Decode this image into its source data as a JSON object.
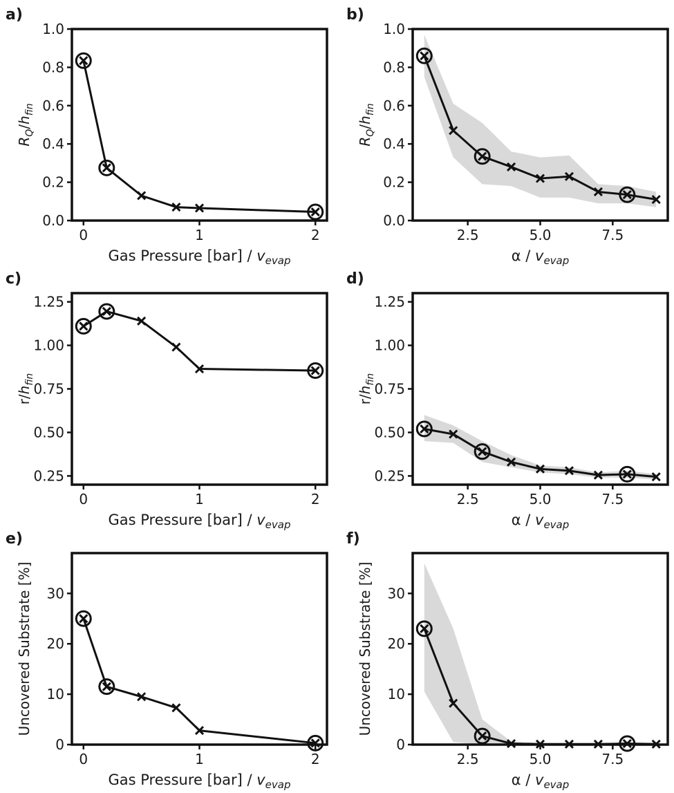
{
  "chart_data": [
    {
      "panel": "a)",
      "type": "line",
      "xlabel": "Gas Pressure [bar] / ",
      "xlabel_var": "v",
      "xlabel_sub": "evap",
      "ylabel": "R",
      "ylabel_sub1": "Q",
      "ylabel_mid": "/h",
      "ylabel_sub2": "fin",
      "xlim": [
        -0.1,
        2.1
      ],
      "ylim": [
        0,
        1.0
      ],
      "xticks": [
        0,
        1,
        2
      ],
      "xtick_labels": [
        "0",
        "1",
        "2"
      ],
      "yticks": [
        0,
        0.2,
        0.4,
        0.6,
        0.8,
        1.0
      ],
      "ytick_labels": [
        "0.0",
        "0.2",
        "0.4",
        "0.6",
        "0.8",
        "1.0"
      ],
      "x": [
        0,
        0.2,
        0.5,
        0.8,
        1.0,
        2.0
      ],
      "y": [
        0.835,
        0.275,
        0.13,
        0.07,
        0.065,
        0.045
      ],
      "circled_indices": [
        0,
        1,
        5
      ]
    },
    {
      "panel": "b)",
      "type": "line",
      "xlabel": "α / ",
      "xlabel_var": "v",
      "xlabel_sub": "evap",
      "ylabel": "R",
      "ylabel_sub1": "Q",
      "ylabel_mid": "/h",
      "ylabel_sub2": "fin",
      "xlim": [
        0.6,
        9.4
      ],
      "ylim": [
        0,
        1.0
      ],
      "xticks": [
        2.5,
        5.0,
        7.5
      ],
      "xtick_labels": [
        "2.5",
        "5.0",
        "7.5"
      ],
      "yticks": [
        0,
        0.2,
        0.4,
        0.6,
        0.8,
        1.0
      ],
      "ytick_labels": [
        "0.0",
        "0.2",
        "0.4",
        "0.6",
        "0.8",
        "1.0"
      ],
      "x": [
        1,
        2,
        3,
        4,
        5,
        6,
        7,
        8,
        9
      ],
      "y": [
        0.86,
        0.47,
        0.335,
        0.28,
        0.22,
        0.23,
        0.15,
        0.135,
        0.11
      ],
      "band_lower": [
        0.75,
        0.33,
        0.19,
        0.18,
        0.12,
        0.12,
        0.09,
        0.09,
        0.07
      ],
      "band_upper": [
        0.97,
        0.61,
        0.51,
        0.36,
        0.33,
        0.34,
        0.19,
        0.18,
        0.15
      ],
      "circled_indices": [
        0,
        2,
        7
      ]
    },
    {
      "panel": "c)",
      "type": "line",
      "xlabel": "Gas Pressure [bar] / ",
      "xlabel_var": "v",
      "xlabel_sub": "evap",
      "ylabel": "r",
      "ylabel_sub1": "",
      "ylabel_mid": "/h",
      "ylabel_sub2": "fin",
      "xlim": [
        -0.1,
        2.1
      ],
      "ylim": [
        0.2,
        1.3
      ],
      "xticks": [
        0,
        1,
        2
      ],
      "xtick_labels": [
        "0",
        "1",
        "2"
      ],
      "yticks": [
        0.25,
        0.5,
        0.75,
        1.0,
        1.25
      ],
      "ytick_labels": [
        "0.25",
        "0.50",
        "0.75",
        "1.00",
        "1.25"
      ],
      "x": [
        0,
        0.2,
        0.5,
        0.8,
        1.0,
        2.0
      ],
      "y": [
        1.11,
        1.195,
        1.14,
        0.99,
        0.865,
        0.855
      ],
      "circled_indices": [
        0,
        1,
        5
      ]
    },
    {
      "panel": "d)",
      "type": "line",
      "xlabel": "α / ",
      "xlabel_var": "v",
      "xlabel_sub": "evap",
      "ylabel": "r",
      "ylabel_sub1": "",
      "ylabel_mid": "/h",
      "ylabel_sub2": "fin",
      "xlim": [
        0.6,
        9.4
      ],
      "ylim": [
        0.2,
        1.3
      ],
      "xticks": [
        2.5,
        5.0,
        7.5
      ],
      "xtick_labels": [
        "2.5",
        "5.0",
        "7.5"
      ],
      "yticks": [
        0.25,
        0.5,
        0.75,
        1.0,
        1.25
      ],
      "ytick_labels": [
        "0.25",
        "0.50",
        "0.75",
        "1.00",
        "1.25"
      ],
      "x": [
        1,
        2,
        3,
        4,
        5,
        6,
        7,
        8,
        9
      ],
      "y": [
        0.52,
        0.49,
        0.39,
        0.33,
        0.29,
        0.28,
        0.255,
        0.26,
        0.245
      ],
      "band_lower": [
        0.45,
        0.44,
        0.33,
        0.3,
        0.27,
        0.26,
        0.24,
        0.24,
        0.23
      ],
      "band_upper": [
        0.6,
        0.54,
        0.45,
        0.37,
        0.31,
        0.3,
        0.27,
        0.28,
        0.26
      ],
      "circled_indices": [
        0,
        2,
        7
      ]
    },
    {
      "panel": "e)",
      "type": "line",
      "xlabel": "Gas Pressure [bar] / ",
      "xlabel_var": "v",
      "xlabel_sub": "evap",
      "ylabel": "Uncovered Substrate [%]",
      "ylabel_sub1": "",
      "ylabel_mid": "",
      "ylabel_sub2": "",
      "xlim": [
        -0.1,
        2.1
      ],
      "ylim": [
        0,
        38
      ],
      "xticks": [
        0,
        1,
        2
      ],
      "xtick_labels": [
        "0",
        "1",
        "2"
      ],
      "yticks": [
        0,
        10,
        20,
        30
      ],
      "ytick_labels": [
        "0",
        "10",
        "20",
        "30"
      ],
      "x": [
        0,
        0.2,
        0.5,
        0.8,
        1.0,
        2.0
      ],
      "y": [
        25,
        11.5,
        9.5,
        7.3,
        2.8,
        0.3
      ],
      "circled_indices": [
        0,
        1,
        5
      ]
    },
    {
      "panel": "f)",
      "type": "line",
      "xlabel": "α / ",
      "xlabel_var": "v",
      "xlabel_sub": "evap",
      "ylabel": "Uncovered Substrate [%]",
      "ylabel_sub1": "",
      "ylabel_mid": "",
      "ylabel_sub2": "",
      "xlim": [
        0.6,
        9.4
      ],
      "ylim": [
        0,
        38
      ],
      "xticks": [
        2.5,
        5.0,
        7.5
      ],
      "xtick_labels": [
        "2.5",
        "5.0",
        "7.5"
      ],
      "yticks": [
        0,
        10,
        20,
        30
      ],
      "ytick_labels": [
        "0",
        "10",
        "20",
        "30"
      ],
      "x": [
        1,
        2,
        3,
        4,
        5,
        6,
        7,
        8,
        9
      ],
      "y": [
        23,
        8.2,
        1.7,
        0.2,
        0.1,
        0.1,
        0.1,
        0.2,
        0.1
      ],
      "band_lower": [
        10.5,
        0.5,
        0,
        0,
        0,
        0,
        0,
        0,
        0
      ],
      "band_upper": [
        36,
        23,
        5,
        0.6,
        0.3,
        0.3,
        0.3,
        0.4,
        0.3
      ],
      "circled_indices": [
        0,
        2,
        7
      ]
    }
  ]
}
